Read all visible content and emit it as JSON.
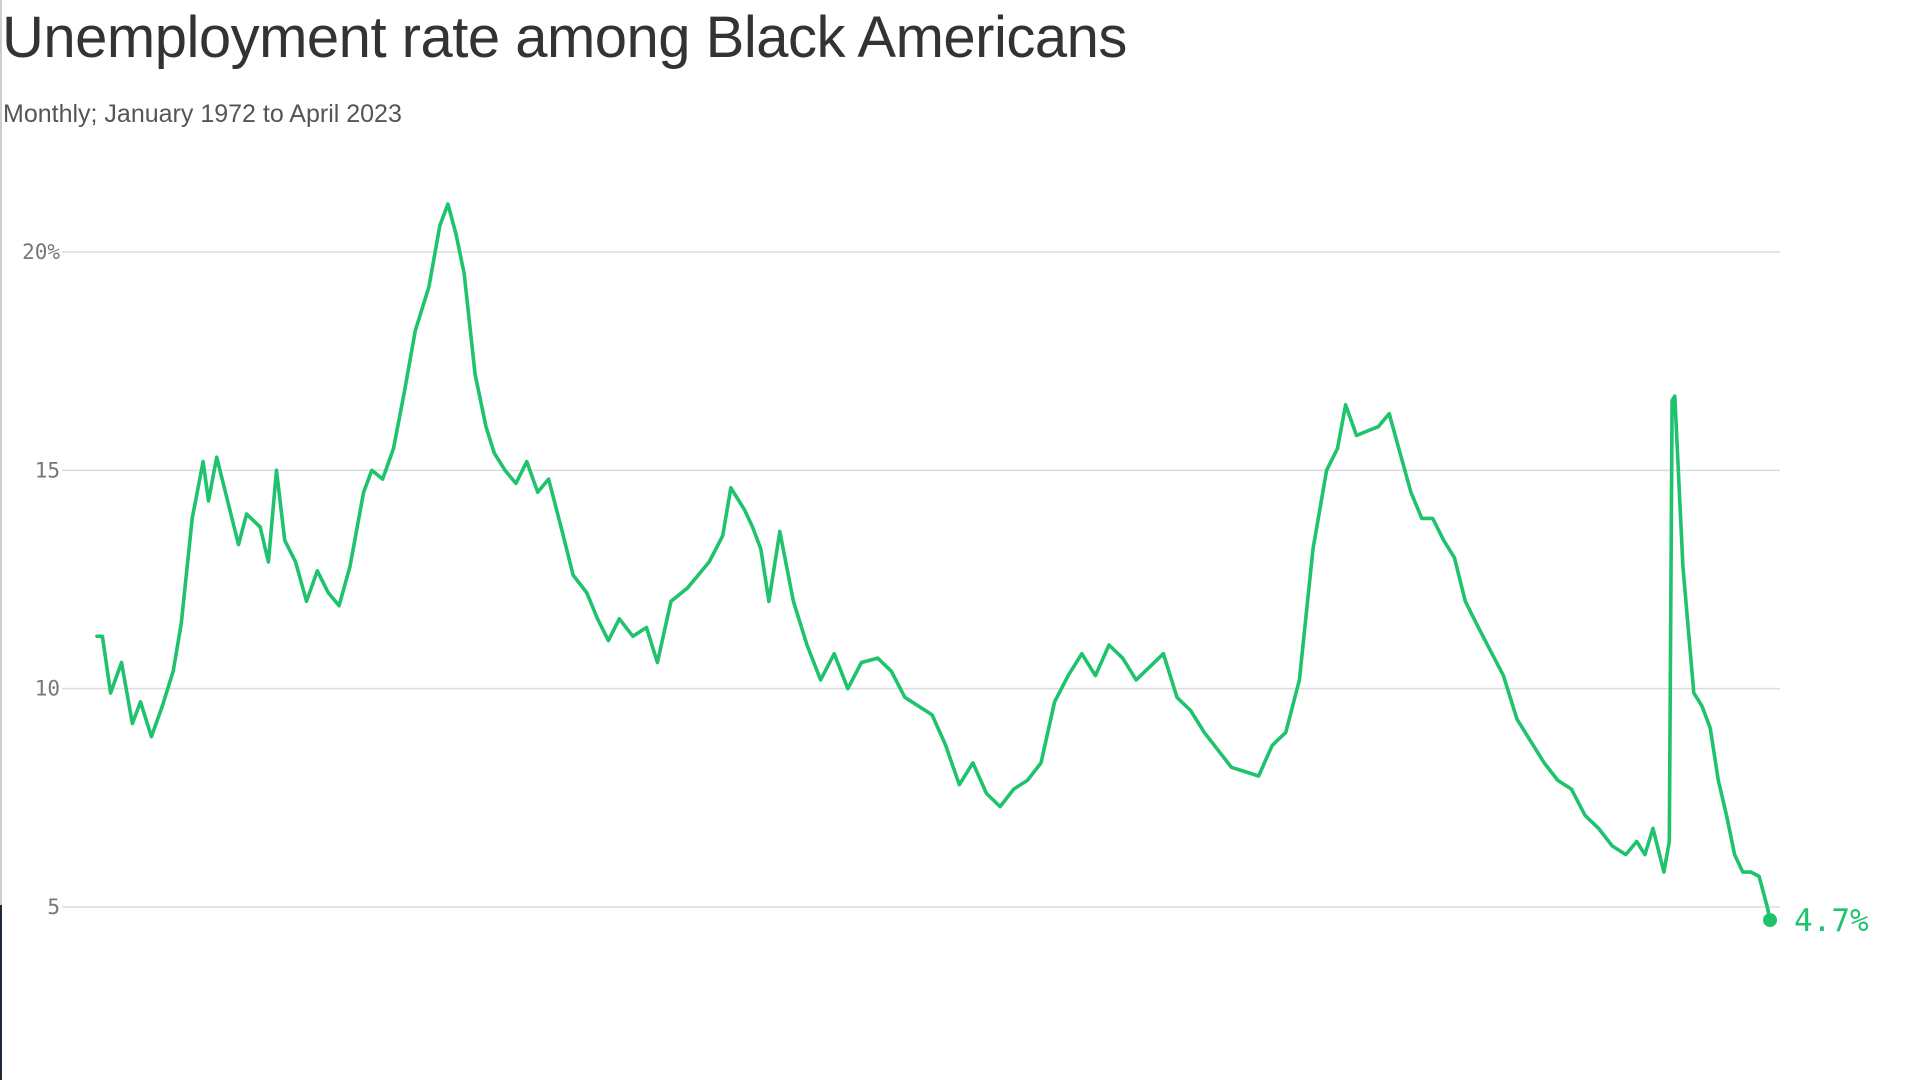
{
  "chart_data": {
    "type": "line",
    "title": "Unemployment rate among Black Americans",
    "subtitle": "Monthly; January 1972 to April 2023",
    "xlabel": "",
    "ylabel": "",
    "x_range": [
      "1972-01",
      "2023-04"
    ],
    "ylim": [
      2,
      22
    ],
    "y_ticks": [
      {
        "value": 20,
        "label": "20%"
      },
      {
        "value": 15,
        "label": "15"
      },
      {
        "value": 10,
        "label": "10"
      },
      {
        "value": 5,
        "label": "5"
      }
    ],
    "grid": true,
    "line_color": "#1fc26d",
    "series": [
      {
        "points": [
          [
            "1972-01",
            11.2
          ],
          [
            "1972-03",
            11.2
          ],
          [
            "1972-06",
            9.9
          ],
          [
            "1972-10",
            10.6
          ],
          [
            "1973-02",
            9.2
          ],
          [
            "1973-05",
            9.7
          ],
          [
            "1973-09",
            8.9
          ],
          [
            "1974-01",
            9.6
          ],
          [
            "1974-05",
            10.4
          ],
          [
            "1974-08",
            11.5
          ],
          [
            "1974-12",
            13.9
          ],
          [
            "1975-04",
            15.2
          ],
          [
            "1975-06",
            14.3
          ],
          [
            "1975-09",
            15.3
          ],
          [
            "1976-01",
            14.3
          ],
          [
            "1976-05",
            13.3
          ],
          [
            "1976-08",
            14.0
          ],
          [
            "1977-01",
            13.7
          ],
          [
            "1977-04",
            12.9
          ],
          [
            "1977-07",
            15.0
          ],
          [
            "1977-10",
            13.4
          ],
          [
            "1978-02",
            12.9
          ],
          [
            "1978-06",
            12.0
          ],
          [
            "1978-10",
            12.7
          ],
          [
            "1979-02",
            12.2
          ],
          [
            "1979-06",
            11.9
          ],
          [
            "1979-10",
            12.8
          ],
          [
            "1980-03",
            14.5
          ],
          [
            "1980-06",
            15.0
          ],
          [
            "1980-10",
            14.8
          ],
          [
            "1981-02",
            15.5
          ],
          [
            "1981-06",
            16.8
          ],
          [
            "1981-10",
            18.2
          ],
          [
            "1982-03",
            19.2
          ],
          [
            "1982-07",
            20.6
          ],
          [
            "1982-10",
            21.1
          ],
          [
            "1983-01",
            20.4
          ],
          [
            "1983-04",
            19.5
          ],
          [
            "1983-08",
            17.2
          ],
          [
            "1983-12",
            16.0
          ],
          [
            "1984-03",
            15.4
          ],
          [
            "1984-07",
            15.0
          ],
          [
            "1984-11",
            14.7
          ],
          [
            "1985-03",
            15.2
          ],
          [
            "1985-07",
            14.5
          ],
          [
            "1985-11",
            14.8
          ],
          [
            "1986-04",
            13.6
          ],
          [
            "1986-08",
            12.6
          ],
          [
            "1987-01",
            12.2
          ],
          [
            "1987-05",
            11.6
          ],
          [
            "1987-09",
            11.1
          ],
          [
            "1988-01",
            11.6
          ],
          [
            "1988-06",
            11.2
          ],
          [
            "1988-11",
            11.4
          ],
          [
            "1989-03",
            10.6
          ],
          [
            "1989-08",
            12.0
          ],
          [
            "1990-02",
            12.3
          ],
          [
            "1990-06",
            12.6
          ],
          [
            "1990-10",
            12.9
          ],
          [
            "1991-03",
            13.5
          ],
          [
            "1991-06",
            14.6
          ],
          [
            "1991-11",
            14.1
          ],
          [
            "1992-02",
            13.7
          ],
          [
            "1992-05",
            13.2
          ],
          [
            "1992-08",
            12.0
          ],
          [
            "1992-12",
            13.6
          ],
          [
            "1993-05",
            12.0
          ],
          [
            "1993-10",
            11.0
          ],
          [
            "1994-03",
            10.2
          ],
          [
            "1994-08",
            10.8
          ],
          [
            "1995-01",
            10.0
          ],
          [
            "1995-06",
            10.6
          ],
          [
            "1995-12",
            10.7
          ],
          [
            "1996-05",
            10.4
          ],
          [
            "1996-10",
            9.8
          ],
          [
            "1997-03",
            9.6
          ],
          [
            "1997-08",
            9.4
          ],
          [
            "1998-01",
            8.7
          ],
          [
            "1998-06",
            7.8
          ],
          [
            "1998-11",
            8.3
          ],
          [
            "1999-04",
            7.6
          ],
          [
            "1999-09",
            7.3
          ],
          [
            "2000-02",
            7.7
          ],
          [
            "2000-07",
            7.9
          ],
          [
            "2000-12",
            8.3
          ],
          [
            "2001-05",
            9.7
          ],
          [
            "2001-10",
            10.3
          ],
          [
            "2002-03",
            10.8
          ],
          [
            "2002-08",
            10.3
          ],
          [
            "2003-01",
            11.0
          ],
          [
            "2003-06",
            10.7
          ],
          [
            "2003-11",
            10.2
          ],
          [
            "2004-04",
            10.5
          ],
          [
            "2004-09",
            10.8
          ],
          [
            "2005-02",
            9.8
          ],
          [
            "2005-07",
            9.5
          ],
          [
            "2005-12",
            9.0
          ],
          [
            "2006-05",
            8.6
          ],
          [
            "2006-10",
            8.2
          ],
          [
            "2007-03",
            8.1
          ],
          [
            "2007-08",
            8.0
          ],
          [
            "2008-01",
            8.7
          ],
          [
            "2008-06",
            9.0
          ],
          [
            "2008-11",
            10.2
          ],
          [
            "2009-04",
            13.2
          ],
          [
            "2009-09",
            15.0
          ],
          [
            "2010-01",
            15.5
          ],
          [
            "2010-04",
            16.5
          ],
          [
            "2010-08",
            15.8
          ],
          [
            "2010-12",
            15.9
          ],
          [
            "2011-04",
            16.0
          ],
          [
            "2011-08",
            16.3
          ],
          [
            "2011-12",
            15.4
          ],
          [
            "2012-04",
            14.5
          ],
          [
            "2012-08",
            13.9
          ],
          [
            "2012-12",
            13.9
          ],
          [
            "2013-04",
            13.4
          ],
          [
            "2013-08",
            13.0
          ],
          [
            "2013-12",
            12.0
          ],
          [
            "2014-04",
            11.5
          ],
          [
            "2014-09",
            10.9
          ],
          [
            "2015-02",
            10.3
          ],
          [
            "2015-07",
            9.3
          ],
          [
            "2015-12",
            8.8
          ],
          [
            "2016-05",
            8.3
          ],
          [
            "2016-10",
            7.9
          ],
          [
            "2017-03",
            7.7
          ],
          [
            "2017-08",
            7.1
          ],
          [
            "2018-01",
            6.8
          ],
          [
            "2018-06",
            6.4
          ],
          [
            "2018-11",
            6.2
          ],
          [
            "2019-03",
            6.5
          ],
          [
            "2019-06",
            6.2
          ],
          [
            "2019-09",
            6.8
          ],
          [
            "2020-01",
            5.8
          ],
          [
            "2020-03",
            6.5
          ],
          [
            "2020-04",
            16.6
          ],
          [
            "2020-05",
            16.7
          ],
          [
            "2020-08",
            12.8
          ],
          [
            "2020-12",
            9.9
          ],
          [
            "2021-03",
            9.6
          ],
          [
            "2021-06",
            9.1
          ],
          [
            "2021-09",
            7.9
          ],
          [
            "2021-12",
            7.1
          ],
          [
            "2022-03",
            6.2
          ],
          [
            "2022-06",
            5.8
          ],
          [
            "2022-09",
            5.8
          ],
          [
            "2022-12",
            5.7
          ],
          [
            "2023-03",
            5.0
          ],
          [
            "2023-04",
            4.7
          ]
        ]
      }
    ],
    "end_label": {
      "value": 4.7,
      "label": "4.7%"
    }
  }
}
